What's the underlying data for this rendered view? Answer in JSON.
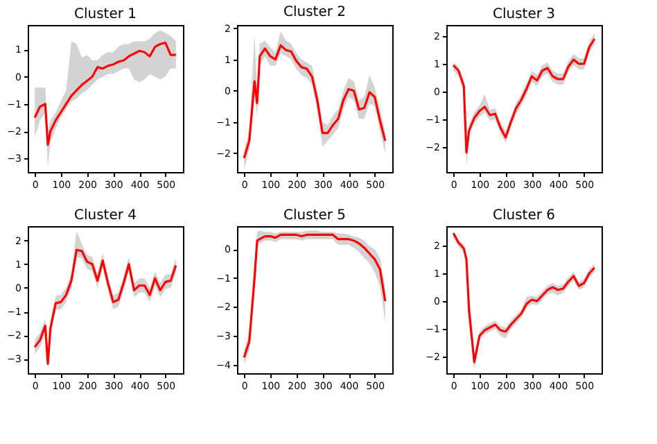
{
  "chart_data": [
    {
      "type": "line",
      "title": "Cluster 1",
      "x": [
        0,
        20,
        40,
        50,
        60,
        80,
        100,
        120,
        140,
        160,
        180,
        200,
        220,
        240,
        260,
        280,
        300,
        320,
        340,
        360,
        380,
        400,
        420,
        440,
        460,
        480,
        500,
        520,
        540
      ],
      "xlim": [
        -27,
        567
      ],
      "xticks": [
        0,
        100,
        200,
        300,
        400,
        500
      ],
      "ylim": [
        -3.5,
        1.9
      ],
      "yticks": [
        -3,
        -2,
        -1,
        0,
        1
      ],
      "grid": false,
      "legend": false,
      "line_style": "solid",
      "marker": "none",
      "series": [
        {
          "color": "#ff0000",
          "values": [
            -1.5,
            -1.1,
            -1.0,
            -2.5,
            -2.0,
            -1.6,
            -1.3,
            -1.0,
            -0.7,
            -0.5,
            -0.3,
            -0.15,
            0.0,
            0.35,
            0.3,
            0.4,
            0.45,
            0.55,
            0.6,
            0.75,
            0.85,
            0.95,
            0.9,
            0.75,
            1.1,
            1.2,
            1.25,
            0.8,
            0.8
          ],
          "lower": [
            -2.2,
            -1.6,
            -1.3,
            -3.3,
            -2.4,
            -1.9,
            -1.5,
            -1.2,
            -0.9,
            -0.8,
            -0.6,
            -0.5,
            -0.3,
            -0.1,
            0.0,
            0.1,
            0.1,
            0.2,
            0.3,
            0.3,
            -0.1,
            -0.2,
            -0.1,
            0.1,
            0.0,
            -0.1,
            0.0,
            0.3,
            0.3
          ],
          "upper": [
            -0.4,
            -0.4,
            -0.4,
            -2.0,
            -1.6,
            -1.3,
            -0.9,
            -0.5,
            1.3,
            1.2,
            0.7,
            0.8,
            0.6,
            0.6,
            0.8,
            0.9,
            0.9,
            1.1,
            1.2,
            1.2,
            1.3,
            1.3,
            1.3,
            1.4,
            1.6,
            1.7,
            1.6,
            1.5,
            1.3
          ]
        }
      ]
    },
    {
      "type": "line",
      "title": "Cluster 2",
      "x": [
        0,
        20,
        40,
        50,
        60,
        80,
        100,
        120,
        140,
        160,
        180,
        200,
        220,
        240,
        260,
        280,
        300,
        320,
        340,
        360,
        380,
        400,
        420,
        440,
        460,
        480,
        500,
        520,
        540
      ],
      "xlim": [
        -27,
        567
      ],
      "xticks": [
        0,
        100,
        200,
        300,
        400,
        500
      ],
      "ylim": [
        -2.6,
        2.1
      ],
      "yticks": [
        -2,
        -1,
        0,
        1,
        2
      ],
      "grid": false,
      "legend": false,
      "line_style": "solid",
      "marker": "none",
      "series": [
        {
          "color": "#ff0000",
          "values": [
            -2.15,
            -1.6,
            0.3,
            -0.4,
            1.1,
            1.35,
            1.1,
            1.0,
            1.45,
            1.3,
            1.25,
            0.95,
            0.75,
            0.7,
            0.45,
            -0.3,
            -1.35,
            -1.35,
            -1.1,
            -0.9,
            -0.3,
            0.05,
            0.0,
            -0.6,
            -0.55,
            -0.05,
            -0.2,
            -0.95,
            -1.6
          ],
          "lower": [
            -2.5,
            -1.9,
            -0.2,
            -0.8,
            0.8,
            1.1,
            0.8,
            0.8,
            1.2,
            1.1,
            1.0,
            0.7,
            0.5,
            0.4,
            0.2,
            -0.6,
            -1.8,
            -1.6,
            -1.4,
            -1.2,
            -0.6,
            -0.2,
            -0.3,
            -0.9,
            -0.9,
            -0.4,
            -0.5,
            -1.3,
            -2.0
          ],
          "upper": [
            -1.9,
            -1.3,
            1.8,
            0.0,
            1.5,
            1.6,
            1.4,
            1.2,
            1.9,
            1.6,
            1.5,
            1.2,
            1.0,
            0.9,
            0.8,
            0.0,
            -1.0,
            -1.1,
            -0.8,
            -0.6,
            0.0,
            0.4,
            0.3,
            -0.3,
            -0.2,
            0.5,
            0.1,
            -0.6,
            -1.3
          ]
        }
      ]
    },
    {
      "type": "line",
      "title": "Cluster 3",
      "x": [
        0,
        20,
        40,
        50,
        60,
        80,
        100,
        120,
        140,
        160,
        180,
        200,
        220,
        240,
        260,
        280,
        300,
        320,
        340,
        360,
        380,
        400,
        420,
        440,
        460,
        480,
        500,
        520,
        540
      ],
      "xlim": [
        -27,
        567
      ],
      "xticks": [
        0,
        100,
        200,
        300,
        400,
        500
      ],
      "ylim": [
        -2.9,
        2.4
      ],
      "yticks": [
        -2,
        -1,
        0,
        1,
        2
      ],
      "grid": false,
      "legend": false,
      "line_style": "solid",
      "marker": "none",
      "series": [
        {
          "color": "#ff0000",
          "values": [
            0.95,
            0.75,
            0.2,
            -2.2,
            -1.4,
            -0.95,
            -0.7,
            -0.55,
            -0.85,
            -0.8,
            -1.3,
            -1.65,
            -1.1,
            -0.6,
            -0.3,
            0.1,
            0.55,
            0.4,
            0.75,
            0.85,
            0.55,
            0.45,
            0.45,
            0.9,
            1.15,
            1.0,
            1.0,
            1.6,
            1.9
          ],
          "lower": [
            0.75,
            0.55,
            0.0,
            -2.7,
            -1.6,
            -1.15,
            -0.9,
            -0.75,
            -1.05,
            -1.0,
            -1.5,
            -1.85,
            -1.3,
            -0.8,
            -0.5,
            -0.1,
            0.35,
            0.2,
            0.55,
            0.65,
            0.35,
            0.25,
            0.25,
            0.7,
            0.95,
            0.8,
            0.8,
            1.4,
            1.7
          ],
          "upper": [
            1.05,
            0.9,
            0.4,
            -1.9,
            -1.2,
            -0.75,
            -0.5,
            -0.1,
            -0.65,
            -0.6,
            -1.1,
            -1.45,
            -0.9,
            -0.4,
            -0.1,
            0.3,
            0.75,
            0.6,
            0.95,
            1.05,
            0.75,
            0.65,
            0.65,
            1.1,
            1.35,
            1.2,
            1.2,
            1.8,
            2.1
          ]
        }
      ]
    },
    {
      "type": "line",
      "title": "Cluster 4",
      "x": [
        0,
        20,
        40,
        50,
        60,
        80,
        100,
        120,
        140,
        160,
        180,
        200,
        220,
        240,
        260,
        280,
        300,
        320,
        340,
        360,
        380,
        400,
        420,
        440,
        460,
        480,
        500,
        520,
        540
      ],
      "xlim": [
        -27,
        567
      ],
      "xticks": [
        0,
        100,
        200,
        300,
        400,
        500
      ],
      "ylim": [
        -3.6,
        2.6
      ],
      "yticks": [
        -3,
        -2,
        -1,
        0,
        1,
        2
      ],
      "grid": false,
      "legend": false,
      "line_style": "solid",
      "marker": "none",
      "series": [
        {
          "color": "#ff0000",
          "values": [
            -2.5,
            -2.2,
            -1.6,
            -3.2,
            -1.7,
            -0.65,
            -0.6,
            -0.3,
            0.3,
            1.6,
            1.55,
            1.1,
            1.0,
            0.3,
            1.15,
            0.2,
            -0.6,
            -0.5,
            0.2,
            1.0,
            -0.1,
            0.1,
            0.1,
            -0.3,
            0.4,
            -0.1,
            0.25,
            0.3,
            0.95
          ],
          "lower": [
            -2.8,
            -2.5,
            -1.9,
            -3.5,
            -2.0,
            -0.95,
            -0.9,
            -0.6,
            0.0,
            1.3,
            1.25,
            0.8,
            0.7,
            0.0,
            0.85,
            -0.1,
            -0.9,
            -0.8,
            -0.1,
            0.7,
            -0.4,
            -0.2,
            -0.2,
            -0.6,
            0.1,
            -0.4,
            -0.05,
            0.0,
            0.65
          ],
          "upper": [
            -2.2,
            -1.9,
            -1.3,
            -2.9,
            -1.4,
            -0.35,
            -0.3,
            0.0,
            0.6,
            2.4,
            1.85,
            1.4,
            1.3,
            0.6,
            1.45,
            0.5,
            -0.3,
            -0.2,
            0.5,
            1.3,
            0.2,
            0.4,
            0.4,
            0.0,
            0.7,
            0.2,
            0.55,
            0.6,
            1.25
          ]
        }
      ]
    },
    {
      "type": "line",
      "title": "Cluster 5",
      "x": [
        0,
        20,
        40,
        50,
        60,
        80,
        100,
        120,
        140,
        160,
        180,
        200,
        220,
        240,
        260,
        280,
        300,
        320,
        340,
        360,
        380,
        400,
        420,
        440,
        460,
        480,
        500,
        520,
        540
      ],
      "xlim": [
        -27,
        567
      ],
      "xticks": [
        0,
        100,
        200,
        300,
        400,
        500
      ],
      "ylim": [
        -4.3,
        0.8
      ],
      "yticks": [
        -4,
        -3,
        -2,
        -1,
        0
      ],
      "grid": false,
      "legend": false,
      "line_style": "solid",
      "marker": "none",
      "series": [
        {
          "color": "#ff0000",
          "values": [
            -3.75,
            -3.2,
            -1.0,
            0.3,
            0.35,
            0.45,
            0.45,
            0.4,
            0.5,
            0.5,
            0.5,
            0.5,
            0.45,
            0.5,
            0.5,
            0.5,
            0.5,
            0.5,
            0.5,
            0.35,
            0.35,
            0.35,
            0.3,
            0.2,
            0.05,
            -0.15,
            -0.35,
            -0.7,
            -1.8
          ],
          "lower": [
            -4.0,
            -3.5,
            -1.5,
            0.1,
            0.2,
            0.3,
            0.3,
            0.25,
            0.35,
            0.35,
            0.35,
            0.35,
            0.3,
            0.35,
            0.35,
            0.35,
            0.35,
            0.35,
            0.35,
            0.15,
            0.15,
            0.15,
            0.05,
            -0.1,
            -0.3,
            -0.5,
            -0.8,
            -1.3,
            -2.5
          ],
          "upper": [
            -3.5,
            -2.9,
            -0.5,
            0.6,
            0.65,
            0.6,
            0.6,
            0.55,
            0.6,
            0.6,
            0.6,
            0.6,
            0.6,
            0.65,
            0.65,
            0.65,
            0.6,
            0.6,
            0.6,
            0.55,
            0.55,
            0.5,
            0.45,
            0.4,
            0.3,
            0.1,
            0.0,
            -0.3,
            -1.3
          ]
        }
      ]
    },
    {
      "type": "line",
      "title": "Cluster 6",
      "x": [
        0,
        20,
        40,
        50,
        60,
        80,
        100,
        120,
        140,
        160,
        180,
        200,
        220,
        240,
        260,
        280,
        300,
        320,
        340,
        360,
        380,
        400,
        420,
        440,
        460,
        480,
        500,
        520,
        540
      ],
      "xlim": [
        -27,
        567
      ],
      "xticks": [
        0,
        100,
        200,
        300,
        400,
        500
      ],
      "ylim": [
        -2.6,
        2.7
      ],
      "yticks": [
        -2,
        -1,
        0,
        1,
        2
      ],
      "grid": false,
      "legend": false,
      "line_style": "solid",
      "marker": "none",
      "series": [
        {
          "color": "#ff0000",
          "values": [
            2.45,
            2.1,
            1.9,
            1.5,
            -0.35,
            -2.2,
            -1.25,
            -1.05,
            -0.95,
            -0.85,
            -1.05,
            -1.1,
            -0.85,
            -0.65,
            -0.45,
            -0.1,
            0.05,
            0.0,
            0.2,
            0.4,
            0.5,
            0.4,
            0.45,
            0.7,
            0.9,
            0.55,
            0.65,
            1.0,
            1.2
          ],
          "lower": [
            2.3,
            1.95,
            1.75,
            1.3,
            -0.55,
            -2.45,
            -1.4,
            -1.2,
            -1.1,
            -1.0,
            -1.25,
            -1.35,
            -1.0,
            -0.8,
            -0.6,
            -0.25,
            -0.1,
            -0.15,
            0.05,
            0.25,
            0.3,
            0.2,
            0.3,
            0.55,
            0.75,
            0.4,
            0.5,
            0.85,
            1.05
          ],
          "upper": [
            2.55,
            2.2,
            2.05,
            1.65,
            0.35,
            -1.95,
            -1.1,
            -0.9,
            -0.8,
            -0.7,
            -0.9,
            -0.95,
            -0.7,
            -0.5,
            -0.3,
            0.15,
            0.2,
            0.15,
            0.35,
            0.55,
            0.65,
            0.55,
            0.6,
            0.85,
            1.05,
            0.7,
            0.8,
            1.15,
            1.35
          ]
        }
      ]
    }
  ]
}
